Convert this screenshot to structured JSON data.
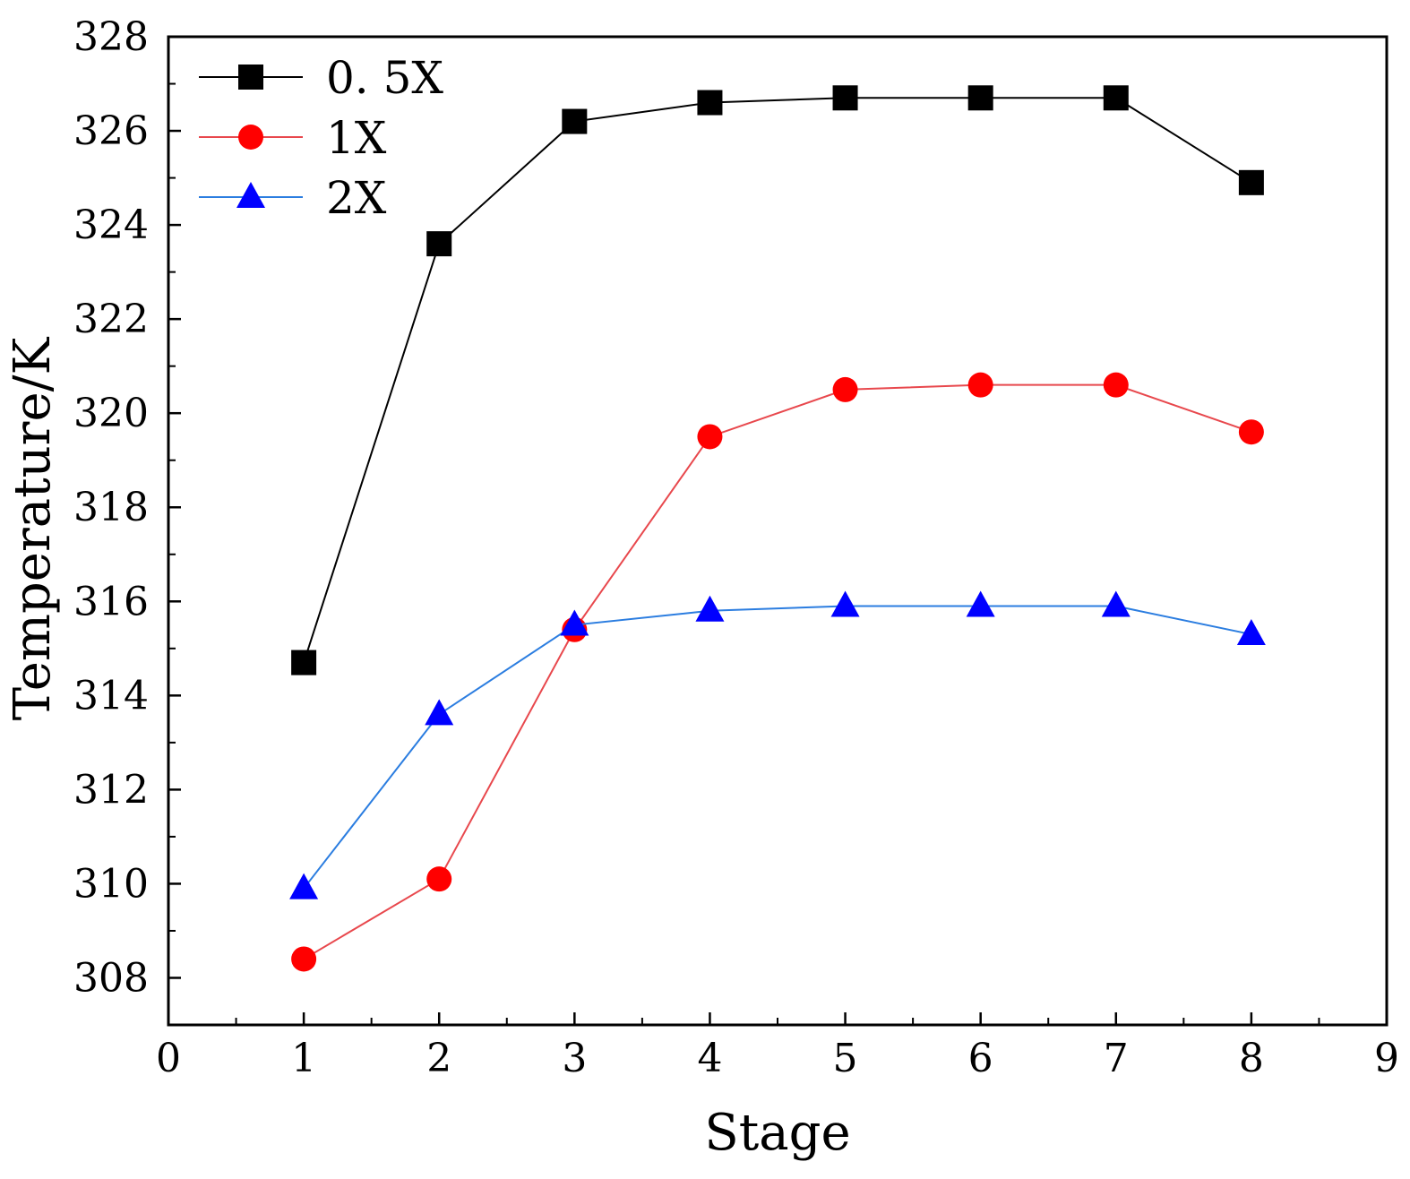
{
  "chart_data": {
    "type": "line",
    "title": "",
    "xlabel": "Stage",
    "ylabel": "Temperature/K",
    "xlim": [
      0,
      9
    ],
    "ylim": [
      307,
      328
    ],
    "x_ticks": [
      0,
      1,
      2,
      3,
      4,
      5,
      6,
      7,
      8,
      9
    ],
    "y_ticks": [
      308,
      310,
      312,
      314,
      316,
      318,
      320,
      322,
      324,
      326,
      328
    ],
    "grid": false,
    "legend_position": "top-left",
    "x": [
      1,
      2,
      3,
      4,
      5,
      6,
      7,
      8
    ],
    "series": [
      {
        "name": "0. 5X",
        "color": "#000000",
        "marker": "square",
        "values": [
          314.7,
          323.6,
          326.2,
          326.6,
          326.7,
          326.7,
          326.7,
          324.9
        ]
      },
      {
        "name": "1X",
        "color": "#ff0000",
        "line_color": "#e8484d",
        "marker": "circle",
        "values": [
          308.4,
          310.1,
          315.4,
          319.5,
          320.5,
          320.6,
          320.6,
          319.6
        ]
      },
      {
        "name": "2X",
        "color": "#0000ff",
        "line_color": "#2b7de0",
        "marker": "triangle",
        "values": [
          309.9,
          313.6,
          315.5,
          315.8,
          315.9,
          315.9,
          315.9,
          315.3
        ]
      }
    ]
  }
}
